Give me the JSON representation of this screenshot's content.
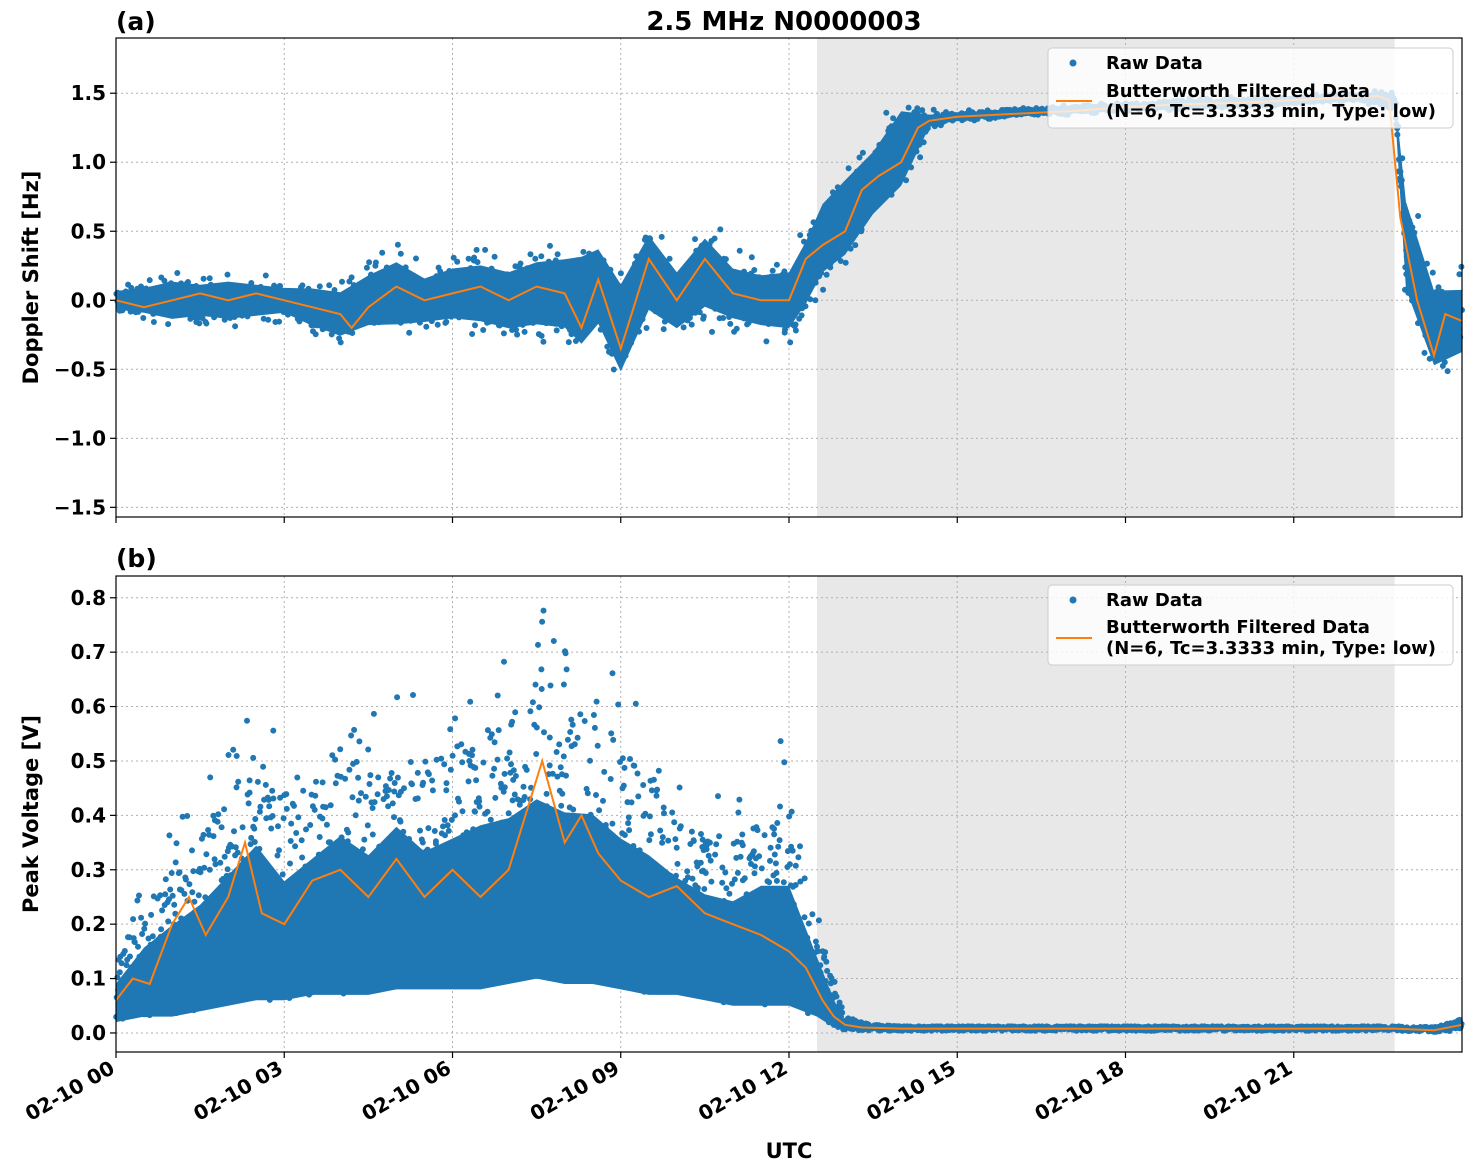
{
  "figure": {
    "title": "2.5 MHz N0000003",
    "xlabel": "UTC"
  },
  "colors": {
    "raw": "#1f77b4",
    "filtered": "#ff7f0e",
    "night_shade": "#e8e8e8"
  },
  "legend": {
    "raw_label": "Raw Data",
    "filtered_label_line1": "Butterworth Filtered Data",
    "filtered_label_line2": "(N=6, Tc=3.3333 min, Type: low)",
    "placement": "top-right"
  },
  "chart_data": [
    {
      "id": "a",
      "panel_label": "(a)",
      "type": "scatter",
      "ylabel": "Doppler Shift [Hz]",
      "xlim_hours": [
        0,
        24
      ],
      "ylim": [
        -1.57,
        1.9
      ],
      "yticks": [
        -1.5,
        -1.0,
        -0.5,
        0.0,
        0.5,
        1.0,
        1.5
      ],
      "ytick_labels": [
        "−1.5",
        "−1.0",
        "−0.5",
        "0.0",
        "0.5",
        "1.0",
        "1.5"
      ],
      "grid": true,
      "shaded_interval_hours": [
        12.5,
        22.8
      ],
      "series": [
        {
          "name": "Butterworth Filtered Data",
          "hours": [
            0,
            0.5,
            1,
            1.5,
            2,
            2.5,
            3,
            3.5,
            4,
            4.2,
            4.5,
            5,
            5.5,
            6,
            6.5,
            7,
            7.5,
            8,
            8.3,
            8.6,
            9,
            9.5,
            10,
            10.5,
            11,
            11.5,
            12,
            12.3,
            12.6,
            13,
            13.3,
            13.6,
            14,
            14.3,
            14.5,
            15,
            16,
            17,
            18,
            19,
            20,
            21,
            22,
            22.5,
            22.7,
            22.9,
            23.2,
            23.5,
            23.7,
            24
          ],
          "values": [
            0.0,
            -0.05,
            0.0,
            0.05,
            0.0,
            0.05,
            0.0,
            -0.05,
            -0.1,
            -0.2,
            -0.05,
            0.1,
            0.0,
            0.05,
            0.1,
            0.0,
            0.1,
            0.05,
            -0.2,
            0.15,
            -0.35,
            0.3,
            0.0,
            0.3,
            0.05,
            0.0,
            0.0,
            0.3,
            0.4,
            0.5,
            0.8,
            0.9,
            1.0,
            1.25,
            1.3,
            1.33,
            1.35,
            1.37,
            1.4,
            1.42,
            1.43,
            1.45,
            1.47,
            1.48,
            1.45,
            0.6,
            0.0,
            -0.4,
            -0.1,
            -0.15
          ]
        },
        {
          "name": "Raw Data",
          "hours": [
            0,
            0.5,
            1,
            1.5,
            2,
            2.5,
            3,
            3.5,
            4,
            4.5,
            5,
            5.5,
            6,
            6.5,
            7,
            7.5,
            8,
            8.3,
            8.6,
            9,
            9.5,
            10,
            10.5,
            11,
            11.5,
            12,
            12.3,
            12.6,
            13,
            13.5,
            14,
            14.5,
            15,
            16,
            17,
            18,
            19,
            20,
            21,
            22,
            22.8,
            23,
            23.5,
            24
          ],
          "values": [
            0.0,
            0.0,
            0.0,
            0.0,
            0.0,
            0.0,
            0.0,
            -0.05,
            -0.1,
            0.0,
            0.05,
            0.0,
            0.05,
            0.05,
            0.0,
            0.05,
            0.05,
            0.0,
            0.1,
            -0.2,
            0.2,
            0.0,
            0.2,
            0.05,
            0.0,
            0.0,
            0.2,
            0.45,
            0.6,
            0.85,
            1.1,
            1.3,
            1.33,
            1.36,
            1.38,
            1.4,
            1.42,
            1.43,
            1.45,
            1.47,
            1.45,
            0.4,
            -0.2,
            -0.15
          ],
          "spread": [
            0.15,
            0.2,
            0.3,
            0.25,
            0.3,
            0.25,
            0.2,
            0.3,
            0.35,
            0.4,
            0.5,
            0.35,
            0.4,
            0.45,
            0.45,
            0.5,
            0.55,
            0.7,
            0.6,
            0.7,
            0.6,
            0.45,
            0.55,
            0.4,
            0.4,
            0.45,
            0.5,
            0.55,
            0.6,
            0.5,
            0.6,
            0.1,
            0.05,
            0.05,
            0.05,
            0.05,
            0.05,
            0.05,
            0.05,
            0.05,
            0.1,
            0.7,
            0.6,
            0.5
          ]
        }
      ]
    },
    {
      "id": "b",
      "panel_label": "(b)",
      "type": "scatter",
      "ylabel": "Peak Voltage [V]",
      "xlim_hours": [
        0,
        24
      ],
      "ylim": [
        -0.035,
        0.84
      ],
      "yticks": [
        0.0,
        0.1,
        0.2,
        0.3,
        0.4,
        0.5,
        0.6,
        0.7,
        0.8
      ],
      "ytick_labels": [
        "0.0",
        "0.1",
        "0.2",
        "0.3",
        "0.4",
        "0.5",
        "0.6",
        "0.7",
        "0.8"
      ],
      "xtick_labels": [
        "02-10 00",
        "02-10 03",
        "02-10 06",
        "02-10 09",
        "02-10 12",
        "02-10 15",
        "02-10 18",
        "02-10 21"
      ],
      "xtick_hours": [
        0,
        3,
        6,
        9,
        12,
        15,
        18,
        21
      ],
      "grid": true,
      "shaded_interval_hours": [
        12.5,
        22.8
      ],
      "series": [
        {
          "name": "Butterworth Filtered Data",
          "hours": [
            0,
            0.3,
            0.6,
            1,
            1.3,
            1.6,
            2,
            2.3,
            2.6,
            3,
            3.5,
            4,
            4.5,
            5,
            5.5,
            6,
            6.5,
            7,
            7.3,
            7.6,
            8,
            8.3,
            8.6,
            9,
            9.5,
            10,
            10.5,
            11,
            11.5,
            12,
            12.3,
            12.6,
            12.8,
            13,
            13.3,
            14,
            15,
            16,
            17,
            18,
            19,
            20,
            21,
            22,
            22.8,
            23.5,
            24
          ],
          "values": [
            0.06,
            0.1,
            0.09,
            0.2,
            0.25,
            0.18,
            0.25,
            0.35,
            0.22,
            0.2,
            0.28,
            0.3,
            0.25,
            0.32,
            0.25,
            0.3,
            0.25,
            0.3,
            0.4,
            0.5,
            0.35,
            0.4,
            0.33,
            0.28,
            0.25,
            0.27,
            0.22,
            0.2,
            0.18,
            0.15,
            0.12,
            0.06,
            0.03,
            0.015,
            0.01,
            0.008,
            0.008,
            0.008,
            0.008,
            0.008,
            0.008,
            0.008,
            0.008,
            0.008,
            0.008,
            0.005,
            0.015
          ]
        },
        {
          "name": "Raw Data",
          "hours": [
            0,
            0.5,
            1,
            1.5,
            2,
            2.5,
            3,
            3.5,
            4,
            4.5,
            5,
            5.5,
            6,
            6.5,
            7,
            7.5,
            8,
            8.5,
            9,
            9.5,
            10,
            10.5,
            11,
            11.5,
            12,
            12.5,
            12.8,
            13,
            13.5,
            14,
            15,
            16,
            17,
            18,
            19,
            20,
            21,
            22,
            22.8,
            23.5,
            24
          ],
          "values": [
            0.07,
            0.08,
            0.1,
            0.12,
            0.15,
            0.18,
            0.16,
            0.17,
            0.18,
            0.18,
            0.19,
            0.19,
            0.2,
            0.2,
            0.22,
            0.23,
            0.22,
            0.22,
            0.2,
            0.18,
            0.17,
            0.15,
            0.13,
            0.12,
            0.12,
            0.08,
            0.04,
            0.015,
            0.01,
            0.008,
            0.008,
            0.008,
            0.008,
            0.008,
            0.008,
            0.008,
            0.008,
            0.008,
            0.008,
            0.005,
            0.015
          ],
          "upper": [
            0.13,
            0.3,
            0.38,
            0.45,
            0.55,
            0.65,
            0.5,
            0.6,
            0.7,
            0.6,
            0.73,
            0.6,
            0.65,
            0.72,
            0.72,
            0.8,
            0.75,
            0.74,
            0.65,
            0.6,
            0.5,
            0.45,
            0.45,
            0.55,
            0.55,
            0.25,
            0.1,
            0.03,
            0.015,
            0.012,
            0.012,
            0.012,
            0.012,
            0.012,
            0.012,
            0.012,
            0.012,
            0.012,
            0.012,
            0.012,
            0.025
          ],
          "lower": [
            0.02,
            0.03,
            0.03,
            0.04,
            0.05,
            0.06,
            0.06,
            0.07,
            0.07,
            0.07,
            0.08,
            0.08,
            0.08,
            0.08,
            0.09,
            0.1,
            0.09,
            0.09,
            0.08,
            0.07,
            0.07,
            0.06,
            0.05,
            0.05,
            0.05,
            0.03,
            0.01,
            0.005,
            0.004,
            0.004,
            0.004,
            0.004,
            0.004,
            0.004,
            0.004,
            0.004,
            0.004,
            0.004,
            0.004,
            0.002,
            0.005
          ]
        }
      ]
    }
  ]
}
